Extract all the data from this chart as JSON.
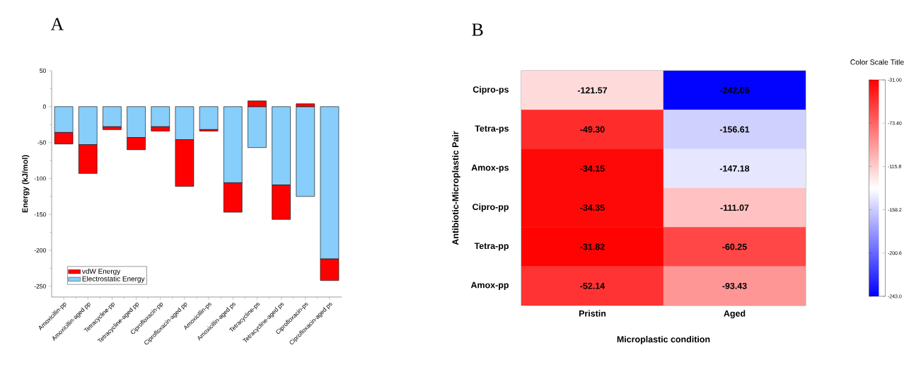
{
  "chart_data": [
    {
      "type": "bar",
      "title": "A",
      "ylabel": "Energy (kJ/mol)",
      "stacked": true,
      "legend": "bottom left",
      "categories": [
        "Amoxicillin-pp",
        "Amoxicillin-aged pp",
        "Tetracycline-pp",
        "Tetracycline-aged pp",
        "Ciprofloxacin-pp",
        "Ciprofloxacin-aged pp",
        "Amoxicillin-ps",
        "Amoxicillin-aged ps",
        "Tetracycline-ps",
        "Tetracycline-aged ps",
        "Ciprofloxacin-ps",
        "Ciprofloxacin-aged ps"
      ],
      "series": [
        {
          "name": "Electrostatic Energy",
          "color": "#87cefa",
          "values": [
            -36,
            -53,
            -28,
            -43,
            -28,
            -46,
            -32,
            -106,
            -57,
            -109,
            -125,
            -212
          ]
        },
        {
          "name": "vdW Energy",
          "color": "#ff0000",
          "values": [
            -16,
            -40,
            -4,
            -17,
            -6,
            -65,
            -2,
            -41,
            8,
            -48,
            4,
            -30
          ]
        }
      ],
      "ylim": [
        -265,
        50
      ],
      "yticks": [
        -250,
        -200,
        -150,
        -100,
        -50,
        0,
        50
      ]
    },
    {
      "type": "heatmap",
      "title": "B",
      "xlabel": "Microplastic condition",
      "ylabel": "Antibiotic-Microplastic Pair",
      "clabel": "Color Scale Title",
      "categories": [
        "Pristin",
        "Aged"
      ],
      "y_categories": [
        "Cipro-ps",
        "Tetra-ps",
        "Amox-ps",
        "Cipro-pp",
        "Tetra-pp",
        "Amox-pp"
      ],
      "cells": [
        [
          -121.57,
          -242.05
        ],
        [
          -49.3,
          -156.61
        ],
        [
          -34.15,
          -147.18
        ],
        [
          -34.35,
          -111.07
        ],
        [
          -31.82,
          -60.25
        ],
        [
          -52.14,
          -93.43
        ]
      ],
      "cell_labels": [
        [
          "-121.57",
          "-242.05"
        ],
        [
          "-49.30",
          "-156.61"
        ],
        [
          "-34.15",
          "-147.18"
        ],
        [
          "-34.35",
          "-111.07"
        ],
        [
          "-31.82",
          "-60.25"
        ],
        [
          "-52.14",
          "-93.43"
        ]
      ],
      "clim": [
        -243,
        -31
      ],
      "cticks": [
        {
          "value": -31,
          "label": "-31.00"
        },
        {
          "value": -73.4,
          "label": "-73.40"
        },
        {
          "value": -115.8,
          "label": "-115.8"
        },
        {
          "value": -158.2,
          "label": "-158.2"
        },
        {
          "value": -200.6,
          "label": "-200.6"
        },
        {
          "value": -243,
          "label": "-243.0"
        }
      ]
    }
  ]
}
